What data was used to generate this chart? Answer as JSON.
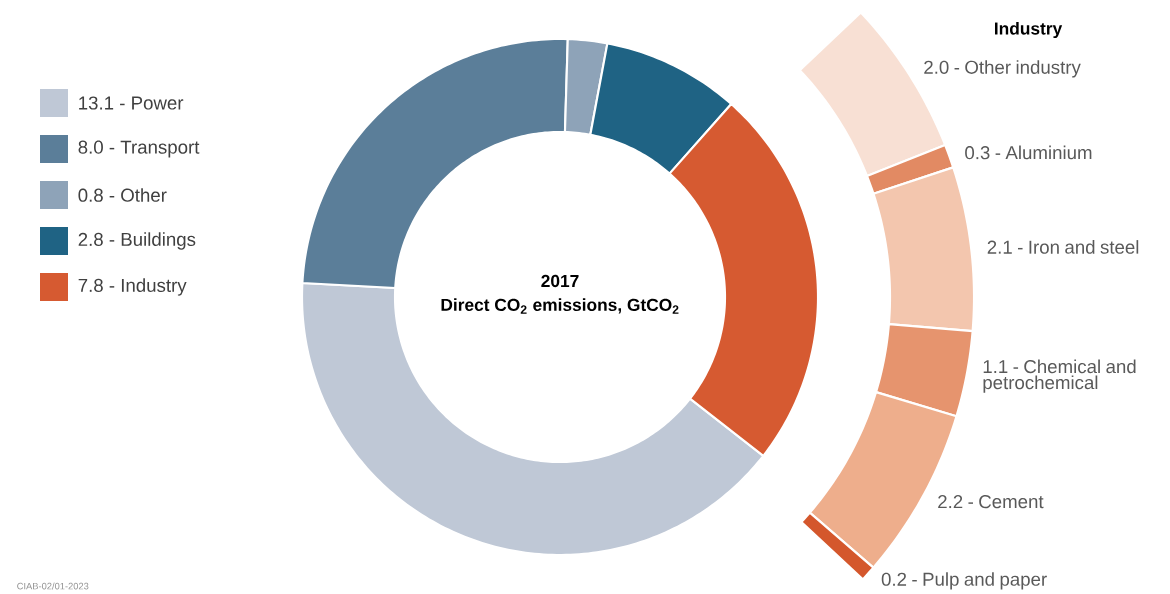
{
  "chart_data": [
    {
      "type": "donut",
      "title": "2017",
      "subtitle": "Direct CO$_{2}$ emissions, GtCO$_{2}$",
      "legend": "left",
      "categories": [
        "13.1 - Power",
        "8.0 - Transport",
        "0.8 - Other",
        "2.8 - Buildings",
        "7.8 - Industry"
      ],
      "values": [
        13.1,
        8.0,
        0.8,
        2.8,
        7.8
      ],
      "colors": [
        "#bfc8d6",
        "#5b7e99",
        "#8ea3b8",
        "#1f6384",
        "#d65a31"
      ],
      "annotations": [
        "CIAB-02/01-2023"
      ]
    },
    {
      "type": "donut",
      "title": "Industry",
      "categories": [
        "2.0 - Other industry",
        "0.3 - Aluminium",
        "2.1 - Iron and steel",
        "1.1 - Chemical and petrochemical",
        "2.2 - Cement",
        "0.2 - Pulp and paper"
      ],
      "values": [
        2.0,
        0.3,
        2.1,
        1.1,
        2.2,
        0.2
      ],
      "colors": [
        "#f8e0d4",
        "#e28a63",
        "#f3c6ae",
        "#e6946e",
        "#eeae8c",
        "#d4572c"
      ]
    }
  ]
}
